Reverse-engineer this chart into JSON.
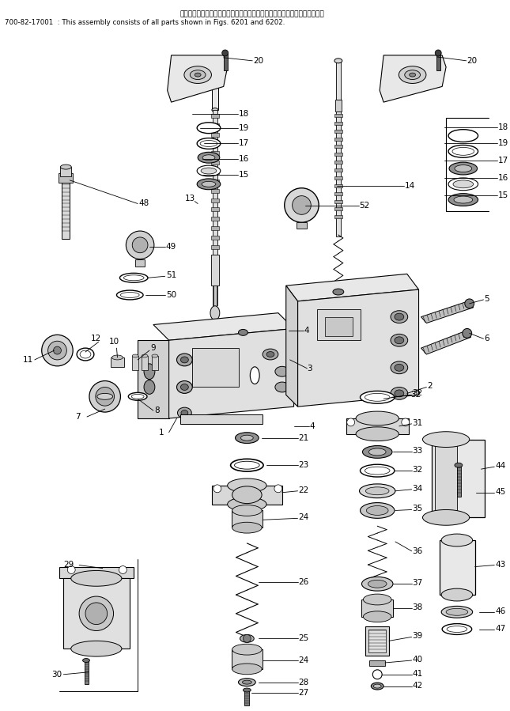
{
  "title_jp": "このアセンブリの構成部品は第６２０１図および第６２０２図を含みます；",
  "title_en": "700-82-17001  : This assembly consists of all parts shown in Figs. 6201 and 6202.",
  "bg_color": "#ffffff",
  "lc": "#000000",
  "tc": "#000000",
  "fig_width": 6.45,
  "fig_height": 8.99
}
